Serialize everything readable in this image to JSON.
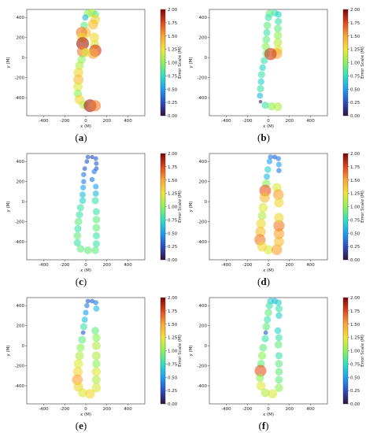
{
  "figure": {
    "panels": [
      {
        "caption_open": "(",
        "caption_letter": "a",
        "caption_close": ")"
      },
      {
        "caption_open": "(",
        "caption_letter": "b",
        "caption_close": ")"
      },
      {
        "caption_open": "(",
        "caption_letter": "c",
        "caption_close": ")"
      },
      {
        "caption_open": "(",
        "caption_letter": "d",
        "caption_close": ")"
      },
      {
        "caption_open": "(",
        "caption_letter": "e",
        "caption_close": ")"
      },
      {
        "caption_open": "(",
        "caption_letter": "f",
        "caption_close": ")"
      }
    ]
  },
  "colors": {
    "colormap": [
      "#30123b",
      "#2b4ec4",
      "#1e9ef5",
      "#2fe0c0",
      "#8ef35a",
      "#f0e537",
      "#fca635",
      "#e4461e",
      "#7a0403"
    ]
  },
  "chart_data": [
    {
      "type": "scatter",
      "panel": "a",
      "xlabel": "x (M)",
      "ylabel": "y (M)",
      "xlim": [
        -560,
        560
      ],
      "ylim": [
        -580,
        480
      ],
      "xticks": [
        -400,
        -200,
        0,
        200,
        400
      ],
      "yticks": [
        -400,
        -200,
        0,
        200,
        400
      ],
      "colorbar": {
        "label": "Error Scale (M)",
        "range": [
          0.0,
          2.0
        ],
        "ticks": [
          "0.00",
          "0.25",
          "0.50",
          "0.75",
          "1.00",
          "1.25",
          "1.50",
          "1.75",
          "2.00"
        ]
      },
      "points": [
        {
          "x": 20,
          "y": 440,
          "err": 1.0
        },
        {
          "x": 60,
          "y": 445,
          "err": 1.1
        },
        {
          "x": 90,
          "y": 430,
          "err": 0.9
        },
        {
          "x": 90,
          "y": 380,
          "err": 1.3
        },
        {
          "x": 70,
          "y": 330,
          "err": 1.4
        },
        {
          "x": -5,
          "y": 400,
          "err": 0.6
        },
        {
          "x": -15,
          "y": 320,
          "err": 0.9
        },
        {
          "x": 0,
          "y": 250,
          "err": 1.4
        },
        {
          "x": -40,
          "y": 250,
          "err": 1.6
        },
        {
          "x": -35,
          "y": 200,
          "err": 1.3
        },
        {
          "x": -30,
          "y": 140,
          "err": 1.9
        },
        {
          "x": -30,
          "y": 60,
          "err": 1.6
        },
        {
          "x": 80,
          "y": 200,
          "err": 1.3
        },
        {
          "x": 85,
          "y": 130,
          "err": 1.2
        },
        {
          "x": 90,
          "y": 70,
          "err": 1.8
        },
        {
          "x": 70,
          "y": 40,
          "err": 1.5
        },
        {
          "x": 0,
          "y": 50,
          "err": 1.2
        },
        {
          "x": -40,
          "y": -20,
          "err": 1.0
        },
        {
          "x": -60,
          "y": -80,
          "err": 1.1
        },
        {
          "x": -70,
          "y": -150,
          "err": 1.3
        },
        {
          "x": -70,
          "y": -220,
          "err": 1.4
        },
        {
          "x": -75,
          "y": -290,
          "err": 1.2
        },
        {
          "x": -75,
          "y": -360,
          "err": 1.0
        },
        {
          "x": -60,
          "y": -420,
          "err": 1.3
        },
        {
          "x": -20,
          "y": -470,
          "err": 1.1
        },
        {
          "x": 40,
          "y": -480,
          "err": 1.9
        },
        {
          "x": 90,
          "y": -480,
          "err": 1.6
        }
      ]
    },
    {
      "type": "scatter",
      "panel": "b",
      "xlabel": "x (M)",
      "ylabel": "y (M)",
      "xlim": [
        -560,
        560
      ],
      "ylim": [
        -580,
        480
      ],
      "xticks": [
        -400,
        -200,
        0,
        200,
        400
      ],
      "yticks": [
        -400,
        -200,
        0,
        200,
        400
      ],
      "colorbar": {
        "label": "Error Scale (M)",
        "range": [
          0.0,
          2.0
        ],
        "ticks": [
          "0.00",
          "0.25",
          "0.50",
          "0.75",
          "1.00",
          "1.25",
          "1.50",
          "1.75",
          "2.00"
        ]
      },
      "points": [
        {
          "x": 10,
          "y": 440,
          "err": 0.9
        },
        {
          "x": 60,
          "y": 445,
          "err": 0.8
        },
        {
          "x": 95,
          "y": 430,
          "err": 0.7
        },
        {
          "x": 95,
          "y": 360,
          "err": 0.8
        },
        {
          "x": 90,
          "y": 290,
          "err": 0.9
        },
        {
          "x": 90,
          "y": 220,
          "err": 1.0
        },
        {
          "x": 90,
          "y": 150,
          "err": 1.1
        },
        {
          "x": 90,
          "y": 80,
          "err": 1.2
        },
        {
          "x": 80,
          "y": 40,
          "err": 1.5
        },
        {
          "x": 0,
          "y": 400,
          "err": 0.8
        },
        {
          "x": -10,
          "y": 320,
          "err": 0.9
        },
        {
          "x": -15,
          "y": 250,
          "err": 0.8
        },
        {
          "x": -20,
          "y": 180,
          "err": 0.9
        },
        {
          "x": -25,
          "y": 110,
          "err": 1.0
        },
        {
          "x": -20,
          "y": 40,
          "err": 0.9
        },
        {
          "x": 20,
          "y": 35,
          "err": 1.8
        },
        {
          "x": -40,
          "y": -30,
          "err": 0.8
        },
        {
          "x": -55,
          "y": -100,
          "err": 0.7
        },
        {
          "x": -65,
          "y": -170,
          "err": 0.8
        },
        {
          "x": -70,
          "y": -240,
          "err": 0.7
        },
        {
          "x": -75,
          "y": -310,
          "err": 0.8
        },
        {
          "x": -80,
          "y": -380,
          "err": 0.6
        },
        {
          "x": -75,
          "y": -440,
          "err": 0.1
        },
        {
          "x": -30,
          "y": -475,
          "err": 0.8
        },
        {
          "x": 30,
          "y": -485,
          "err": 1.0
        },
        {
          "x": 90,
          "y": -490,
          "err": 1.1
        }
      ]
    },
    {
      "type": "scatter",
      "panel": "c",
      "xlabel": "x (M)",
      "ylabel": "y (M)",
      "xlim": [
        -560,
        560
      ],
      "ylim": [
        -580,
        480
      ],
      "xticks": [
        -400,
        -200,
        0,
        200,
        400
      ],
      "yticks": [
        -400,
        -200,
        0,
        200,
        400
      ],
      "colorbar": {
        "label": "Error Scale (M)",
        "range": [
          0.0,
          2.0
        ],
        "ticks": [
          "0.00",
          "0.25",
          "0.50",
          "0.75",
          "1.00",
          "1.25",
          "1.50",
          "1.75",
          "2.00"
        ]
      },
      "points": [
        {
          "x": 20,
          "y": 445,
          "err": 0.3
        },
        {
          "x": 60,
          "y": 445,
          "err": 0.2
        },
        {
          "x": 95,
          "y": 430,
          "err": 0.3
        },
        {
          "x": 100,
          "y": 380,
          "err": 0.3
        },
        {
          "x": 100,
          "y": 330,
          "err": 0.3
        },
        {
          "x": 80,
          "y": 300,
          "err": 0.4
        },
        {
          "x": 10,
          "y": 400,
          "err": 0.3
        },
        {
          "x": -10,
          "y": 330,
          "err": 0.3
        },
        {
          "x": -20,
          "y": 270,
          "err": 0.4
        },
        {
          "x": -20,
          "y": 200,
          "err": 0.4
        },
        {
          "x": -25,
          "y": 140,
          "err": 0.5
        },
        {
          "x": -30,
          "y": 70,
          "err": 0.6
        },
        {
          "x": 60,
          "y": 220,
          "err": 0.4
        },
        {
          "x": 95,
          "y": 150,
          "err": 0.5
        },
        {
          "x": 95,
          "y": 80,
          "err": 0.6
        },
        {
          "x": 90,
          "y": 10,
          "err": 0.8
        },
        {
          "x": -30,
          "y": 10,
          "err": 0.7
        },
        {
          "x": -50,
          "y": -60,
          "err": 0.8
        },
        {
          "x": -60,
          "y": -130,
          "err": 0.8
        },
        {
          "x": -70,
          "y": -200,
          "err": 0.9
        },
        {
          "x": -75,
          "y": -270,
          "err": 0.8
        },
        {
          "x": -80,
          "y": -340,
          "err": 0.9
        },
        {
          "x": -80,
          "y": -410,
          "err": 0.8
        },
        {
          "x": -50,
          "y": -470,
          "err": 0.9
        },
        {
          "x": 20,
          "y": -485,
          "err": 0.9
        },
        {
          "x": 90,
          "y": -485,
          "err": 0.9
        },
        {
          "x": 100,
          "y": -420,
          "err": 0.8
        },
        {
          "x": 100,
          "y": -340,
          "err": 0.8
        },
        {
          "x": 100,
          "y": -260,
          "err": 0.9
        },
        {
          "x": 100,
          "y": -180,
          "err": 0.9
        },
        {
          "x": 100,
          "y": -100,
          "err": 0.8
        }
      ]
    },
    {
      "type": "scatter",
      "panel": "d",
      "xlabel": "x (M)",
      "ylabel": "y (M)",
      "xlim": [
        -560,
        560
      ],
      "ylim": [
        -580,
        480
      ],
      "xticks": [
        -400,
        -200,
        0,
        200,
        400
      ],
      "yticks": [
        -400,
        -200,
        0,
        200,
        400
      ],
      "colorbar": {
        "label": "Error Scale (M)",
        "range": [
          0.0,
          2.0
        ],
        "ticks": [
          "0.00",
          "0.25",
          "0.50",
          "0.75",
          "1.00",
          "1.25",
          "1.50",
          "1.75",
          "2.00"
        ]
      },
      "points": [
        {
          "x": 20,
          "y": 445,
          "err": 0.4
        },
        {
          "x": 60,
          "y": 445,
          "err": 0.3
        },
        {
          "x": 95,
          "y": 430,
          "err": 0.4
        },
        {
          "x": 100,
          "y": 370,
          "err": 0.5
        },
        {
          "x": 100,
          "y": 310,
          "err": 0.4
        },
        {
          "x": 10,
          "y": 400,
          "err": 0.5
        },
        {
          "x": -5,
          "y": 320,
          "err": 0.7
        },
        {
          "x": -15,
          "y": 250,
          "err": 0.6
        },
        {
          "x": -20,
          "y": 180,
          "err": 1.0
        },
        {
          "x": -30,
          "y": 110,
          "err": 1.7
        },
        {
          "x": -35,
          "y": 40,
          "err": 1.4
        },
        {
          "x": 80,
          "y": 140,
          "err": 1.2
        },
        {
          "x": 95,
          "y": 70,
          "err": 1.5
        },
        {
          "x": 100,
          "y": -10,
          "err": 1.3
        },
        {
          "x": -50,
          "y": -60,
          "err": 1.2
        },
        {
          "x": -60,
          "y": -140,
          "err": 1.1
        },
        {
          "x": -70,
          "y": -220,
          "err": 1.3
        },
        {
          "x": -75,
          "y": -300,
          "err": 1.4
        },
        {
          "x": -80,
          "y": -380,
          "err": 1.6
        },
        {
          "x": -60,
          "y": -450,
          "err": 1.3
        },
        {
          "x": 0,
          "y": -480,
          "err": 1.2
        },
        {
          "x": 80,
          "y": -480,
          "err": 1.5
        },
        {
          "x": 100,
          "y": -400,
          "err": 1.4
        },
        {
          "x": 100,
          "y": -320,
          "err": 1.5
        },
        {
          "x": 100,
          "y": -240,
          "err": 1.6
        },
        {
          "x": 100,
          "y": -160,
          "err": 1.3
        }
      ]
    },
    {
      "type": "scatter",
      "panel": "e",
      "xlabel": "x (M)",
      "ylabel": "y (M)",
      "xlim": [
        -560,
        560
      ],
      "ylim": [
        -580,
        480
      ],
      "xticks": [
        -400,
        -200,
        0,
        200,
        400
      ],
      "yticks": [
        -400,
        -200,
        0,
        200,
        400
      ],
      "colorbar": {
        "label": "Error Scale (M)",
        "range": [
          0.0,
          2.0
        ],
        "ticks": [
          "0.00",
          "0.25",
          "0.50",
          "0.75",
          "1.00",
          "1.25",
          "1.50",
          "1.75",
          "2.00"
        ]
      },
      "points": [
        {
          "x": 20,
          "y": 445,
          "err": 0.3
        },
        {
          "x": 60,
          "y": 445,
          "err": 0.3
        },
        {
          "x": 95,
          "y": 430,
          "err": 0.4
        },
        {
          "x": 100,
          "y": 370,
          "err": 0.6
        },
        {
          "x": 10,
          "y": 400,
          "err": 0.4
        },
        {
          "x": 0,
          "y": 330,
          "err": 0.5
        },
        {
          "x": -10,
          "y": 260,
          "err": 0.6
        },
        {
          "x": -20,
          "y": 190,
          "err": 0.8
        },
        {
          "x": -25,
          "y": 130,
          "err": 0.3
        },
        {
          "x": -35,
          "y": 60,
          "err": 0.9
        },
        {
          "x": 90,
          "y": 150,
          "err": 0.9
        },
        {
          "x": 100,
          "y": 80,
          "err": 1.0
        },
        {
          "x": 100,
          "y": 0,
          "err": 1.1
        },
        {
          "x": -50,
          "y": -20,
          "err": 1.0
        },
        {
          "x": -60,
          "y": -100,
          "err": 1.1
        },
        {
          "x": -70,
          "y": -180,
          "err": 1.2
        },
        {
          "x": -75,
          "y": -260,
          "err": 1.3
        },
        {
          "x": -80,
          "y": -340,
          "err": 1.5
        },
        {
          "x": -70,
          "y": -410,
          "err": 1.3
        },
        {
          "x": -30,
          "y": -470,
          "err": 1.2
        },
        {
          "x": 40,
          "y": -480,
          "err": 1.3
        },
        {
          "x": 100,
          "y": -420,
          "err": 1.2
        },
        {
          "x": 100,
          "y": -340,
          "err": 1.1
        },
        {
          "x": 100,
          "y": -260,
          "err": 1.2
        },
        {
          "x": 100,
          "y": -180,
          "err": 1.0
        },
        {
          "x": 100,
          "y": -100,
          "err": 1.1
        }
      ]
    },
    {
      "type": "scatter",
      "panel": "f",
      "xlabel": "x (M)",
      "ylabel": "y (M)",
      "xlim": [
        -560,
        560
      ],
      "ylim": [
        -580,
        480
      ],
      "xticks": [
        -400,
        -200,
        0,
        200,
        400
      ],
      "yticks": [
        -400,
        -200,
        0,
        200,
        400
      ],
      "colorbar": {
        "label": "Error Scale (M)",
        "range": [
          0.0,
          2.0
        ],
        "ticks": [
          "0.00",
          "0.25",
          "0.50",
          "0.75",
          "1.00",
          "1.25",
          "1.50",
          "1.75",
          "2.00"
        ]
      },
      "points": [
        {
          "x": 20,
          "y": 445,
          "err": 0.7
        },
        {
          "x": 60,
          "y": 445,
          "err": 0.6
        },
        {
          "x": 95,
          "y": 430,
          "err": 0.7
        },
        {
          "x": 100,
          "y": 370,
          "err": 0.8
        },
        {
          "x": 100,
          "y": 300,
          "err": 0.7
        },
        {
          "x": 10,
          "y": 400,
          "err": 0.8
        },
        {
          "x": 0,
          "y": 330,
          "err": 0.9
        },
        {
          "x": -10,
          "y": 260,
          "err": 0.8
        },
        {
          "x": -20,
          "y": 190,
          "err": 0.9
        },
        {
          "x": -25,
          "y": 130,
          "err": 0.3
        },
        {
          "x": -30,
          "y": 70,
          "err": 0.8
        },
        {
          "x": 90,
          "y": 150,
          "err": 0.7
        },
        {
          "x": 100,
          "y": 80,
          "err": 0.8
        },
        {
          "x": 95,
          "y": 10,
          "err": 0.9
        },
        {
          "x": -50,
          "y": -20,
          "err": 0.9
        },
        {
          "x": -60,
          "y": -100,
          "err": 1.0
        },
        {
          "x": -70,
          "y": -180,
          "err": 0.9
        },
        {
          "x": -75,
          "y": -250,
          "err": 1.7
        },
        {
          "x": -80,
          "y": -320,
          "err": 1.0
        },
        {
          "x": -70,
          "y": -400,
          "err": 1.2
        },
        {
          "x": -30,
          "y": -470,
          "err": 1.1
        },
        {
          "x": 40,
          "y": -480,
          "err": 1.2
        },
        {
          "x": 100,
          "y": -420,
          "err": 1.0
        },
        {
          "x": 100,
          "y": -340,
          "err": 0.9
        },
        {
          "x": 100,
          "y": -260,
          "err": 0.9
        },
        {
          "x": 100,
          "y": -180,
          "err": 0.9
        },
        {
          "x": 100,
          "y": -100,
          "err": 0.8
        }
      ]
    }
  ]
}
